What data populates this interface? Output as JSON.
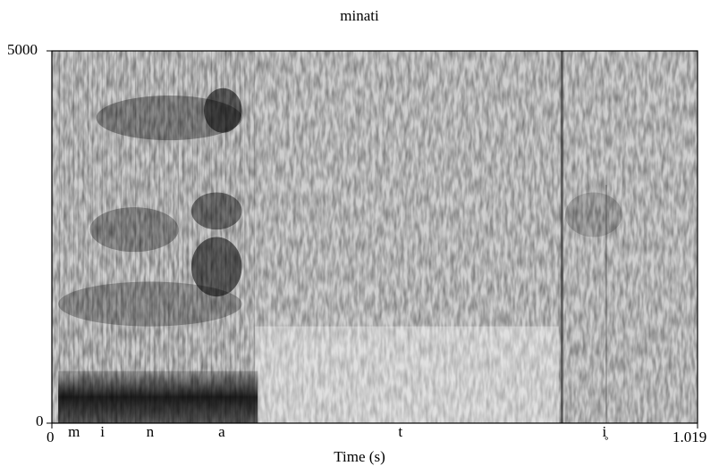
{
  "chart_data": {
    "type": "heatmap",
    "subtype": "spectrogram",
    "title": "minati",
    "xlabel": "Time (s)",
    "ylabel": "",
    "xlim": [
      0,
      1.019
    ],
    "ylim": [
      0,
      5000
    ],
    "x_tick_labels": [
      "0",
      "1.019"
    ],
    "y_tick_labels": [
      "0",
      "5000"
    ],
    "colormap": "grayscale (darker = more energy)",
    "segments": [
      {
        "label": "m",
        "time": 0.035
      },
      {
        "label": "i",
        "time": 0.08
      },
      {
        "label": "n",
        "time": 0.155
      },
      {
        "label": "a",
        "time": 0.268
      },
      {
        "label": "t",
        "time": 0.55
      },
      {
        "label": "i̥",
        "time": 0.872
      }
    ]
  }
}
